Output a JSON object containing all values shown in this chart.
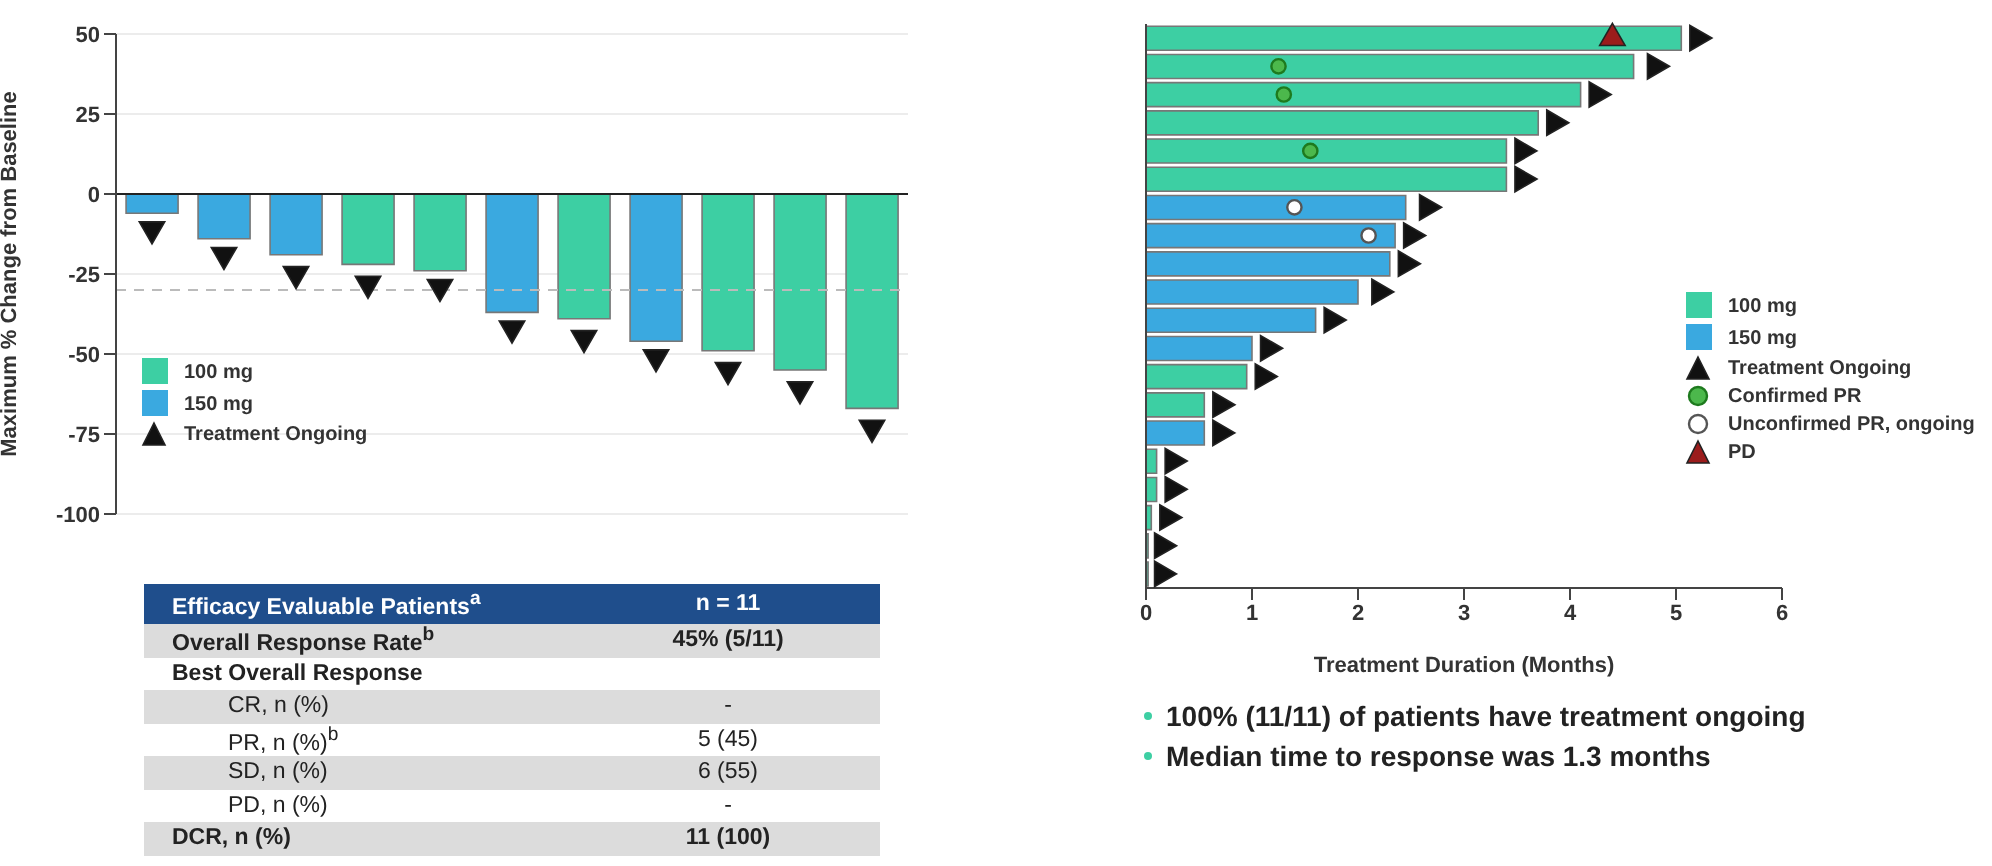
{
  "chart_data": [
    {
      "type": "bar",
      "ylabel": "Maximum % Change from Baseline",
      "categories": [
        null,
        null,
        null,
        null,
        null,
        null,
        null,
        null,
        null,
        null,
        null
      ],
      "stacked": true,
      "ylim": [
        -100,
        50
      ],
      "yticks": [
        50,
        25,
        0,
        -25,
        -50,
        -75,
        -100
      ],
      "tick_labels": "y",
      "legend": "bottom left",
      "grid": "y",
      "series": [
        {
          "name": "100 mg",
          "color": "#3dcfa3",
          "values": [
            null,
            null,
            null,
            -22,
            -24,
            null,
            -39,
            null,
            -49,
            -55,
            -67
          ]
        },
        {
          "name": "150 mg",
          "color": "#3aa9e0",
          "values": [
            -6,
            -14,
            -19,
            null,
            null,
            -37,
            null,
            -46,
            null,
            null,
            null
          ]
        },
        {
          "name": "Treatment Ongoing",
          "type": "scatter",
          "marker": "triangle",
          "color": "#111111",
          "values": [
            -11,
            -19,
            -25,
            -28,
            -29,
            -42,
            -45,
            -51,
            -55,
            -61,
            -73
          ]
        }
      ],
      "ref_lines": [
        {
          "axis": "y",
          "value": -30,
          "color": "#bbbbbb",
          "line_style": "dashed"
        }
      ]
    },
    {
      "type": "other",
      "categories": [
        "Efficacy Evaluable Patients$^{a}$",
        "Overall Response Rate$^{b}$",
        "Best Overall Response",
        "CR, n (%)",
        "PR, n (%)$^{b}$",
        "SD, n (%)",
        "PD, n (%)",
        "DCR, n (%)"
      ],
      "value_labels": [
        "n = 11",
        "45% (5/11)",
        null,
        "-",
        "5 (45)",
        "6 (55)",
        "-",
        "11 (100)"
      ]
    },
    {
      "type": "bar",
      "orientation": "horizontal",
      "xlabel": "Treatment Duration (Months)",
      "categories": [
        null,
        null,
        null,
        null,
        null,
        null,
        null,
        null,
        null,
        null,
        null,
        null,
        null,
        null,
        null,
        null,
        null,
        null,
        null,
        null
      ],
      "stacked": true,
      "xlim": [
        0,
        6
      ],
      "xticks": [
        0,
        1,
        2,
        3,
        4,
        5,
        6
      ],
      "tick_labels": "x",
      "legend": "right",
      "series": [
        {
          "name": "100 mg",
          "color": "#3dcfa3",
          "values": [
            5.05,
            4.6,
            4.1,
            3.7,
            3.4,
            3.4,
            null,
            null,
            null,
            null,
            null,
            null,
            0.95,
            0.55,
            null,
            0.1,
            0.1,
            0.05,
            0.02,
            0.02
          ]
        },
        {
          "name": "150 mg",
          "color": "#3aa9e0",
          "values": [
            null,
            null,
            null,
            null,
            null,
            null,
            2.45,
            2.35,
            2.3,
            2.0,
            1.6,
            1.0,
            null,
            null,
            0.55,
            null,
            null,
            null,
            null,
            null
          ]
        },
        {
          "name": "Treatment Ongoing",
          "type": "scatter",
          "marker": "triangle",
          "color": "#111111",
          "values": [
            5.2,
            4.8,
            4.25,
            3.85,
            3.55,
            3.55,
            2.65,
            2.5,
            2.45,
            2.2,
            1.75,
            1.15,
            1.1,
            0.7,
            0.7,
            0.25,
            0.25,
            0.2,
            0.15,
            0.15
          ]
        },
        {
          "name": "Confirmed PR",
          "type": "scatter",
          "marker": "circle",
          "color": "#4cb84c",
          "values": [
            null,
            1.25,
            1.3,
            null,
            1.55,
            null,
            null,
            null,
            null,
            null,
            null,
            null,
            null,
            null,
            null,
            null,
            null,
            null,
            null,
            null
          ]
        },
        {
          "name": "Unconfirmed PR, ongoing",
          "type": "scatter",
          "marker": "circle",
          "color": "#ffffff",
          "values": [
            null,
            null,
            null,
            null,
            null,
            null,
            1.4,
            2.1,
            null,
            null,
            null,
            null,
            null,
            null,
            null,
            null,
            null,
            null,
            null,
            null
          ]
        },
        {
          "name": "PD",
          "type": "scatter",
          "marker": "triangle",
          "color": "#9b1c1c",
          "values": [
            4.4,
            null,
            null,
            null,
            null,
            null,
            null,
            null,
            null,
            null,
            null,
            null,
            null,
            null,
            null,
            null,
            null,
            null,
            null,
            null
          ]
        }
      ],
      "annotations": [
        "100% (11/11) of patients have treatment ongoing",
        "Median time to response was 1.3 months"
      ]
    }
  ]
}
